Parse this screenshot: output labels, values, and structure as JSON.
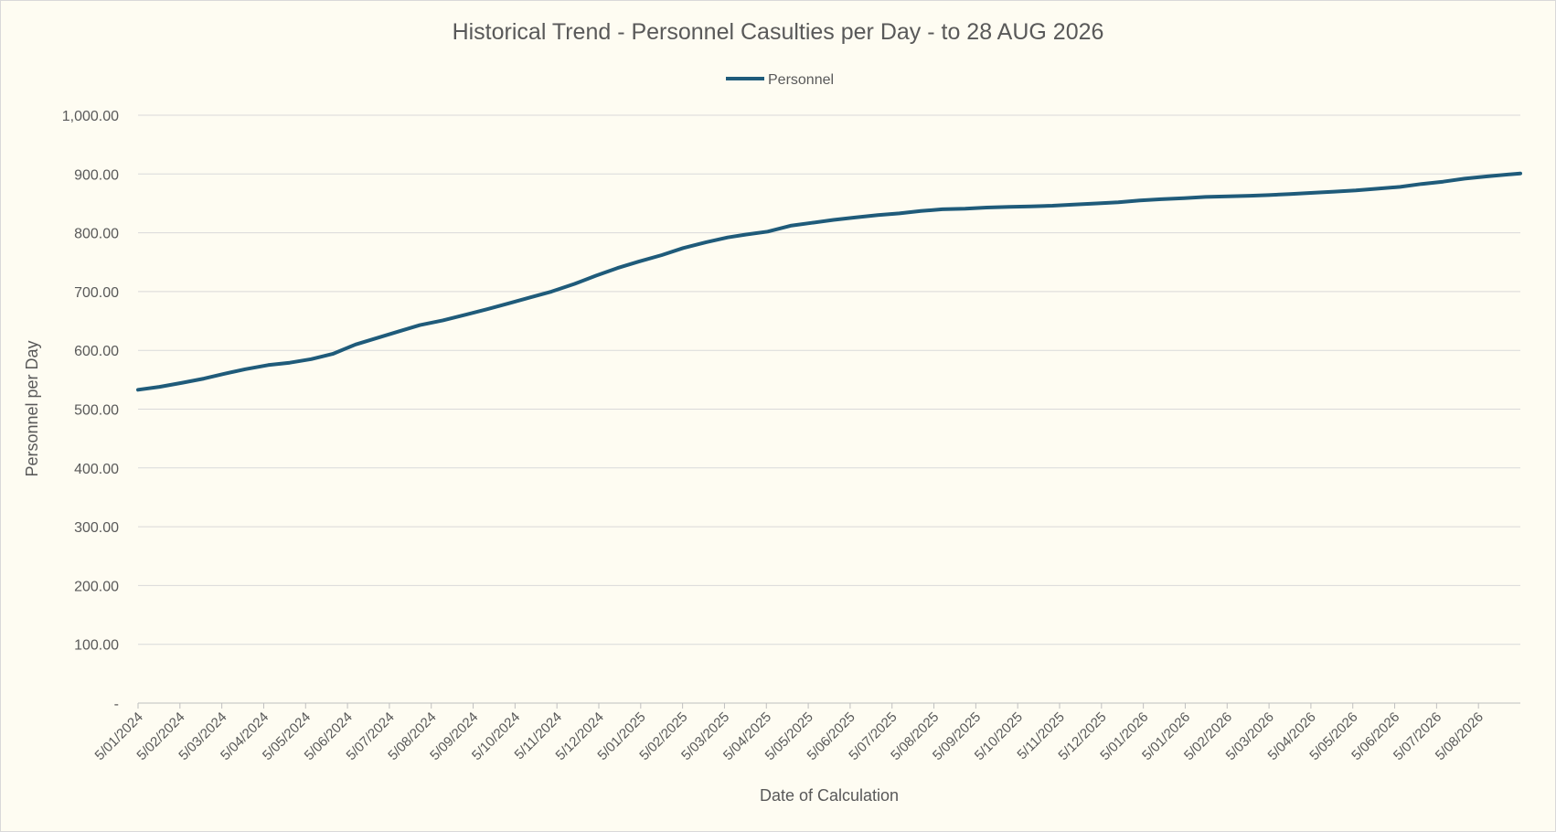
{
  "chart_data": {
    "type": "line",
    "title": "Historical Trend - Personnel Casulties per Day - to 28 AUG 2026",
    "xlabel": "Date of Calculation",
    "ylabel": "Personnel per Day",
    "legend": "top",
    "grid": true,
    "ylim": [
      0,
      1000
    ],
    "y_ticks": [
      0,
      100,
      200,
      300,
      400,
      500,
      600,
      700,
      800,
      900,
      1000
    ],
    "y_tick_labels": [
      "-",
      "100.00",
      "200.00",
      "300.00",
      "400.00",
      "500.00",
      "600.00",
      "700.00",
      "800.00",
      "900.00",
      "1,000.00"
    ],
    "x_tick_labels": [
      "5/01/2024",
      "5/02/2024",
      "5/03/2024",
      "5/04/2024",
      "5/05/2024",
      "5/06/2024",
      "5/07/2024",
      "5/08/2024",
      "5/09/2024",
      "5/10/2024",
      "5/11/2024",
      "5/12/2024",
      "5/01/2025",
      "5/02/2025",
      "5/03/2025",
      "5/04/2025",
      "5/05/2025",
      "5/06/2025",
      "5/07/2025",
      "5/08/2025",
      "5/09/2025",
      "5/10/2025",
      "5/11/2025",
      "5/12/2025",
      "5/01/2026",
      "5/01/2026",
      "5/02/2026",
      "5/03/2026",
      "5/04/2026",
      "5/05/2026",
      "5/06/2026",
      "5/07/2026",
      "5/08/2026"
    ],
    "x_range": [
      "2024-01-05",
      "2026-08-28"
    ],
    "series": [
      {
        "name": "Personnel",
        "color": "#1f5b7a",
        "points": [
          [
            "2024-01-05",
            533
          ],
          [
            "2024-01-20",
            538
          ],
          [
            "2024-02-05",
            545
          ],
          [
            "2024-02-20",
            552
          ],
          [
            "2024-03-05",
            560
          ],
          [
            "2024-03-20",
            568
          ],
          [
            "2024-04-05",
            575
          ],
          [
            "2024-04-20",
            579
          ],
          [
            "2024-05-05",
            585
          ],
          [
            "2024-05-20",
            594
          ],
          [
            "2024-06-05",
            610
          ],
          [
            "2024-06-20",
            621
          ],
          [
            "2024-07-05",
            632
          ],
          [
            "2024-07-20",
            643
          ],
          [
            "2024-08-05",
            651
          ],
          [
            "2024-08-20",
            660
          ],
          [
            "2024-09-05",
            670
          ],
          [
            "2024-09-20",
            680
          ],
          [
            "2024-10-05",
            690
          ],
          [
            "2024-10-20",
            700
          ],
          [
            "2024-11-05",
            713
          ],
          [
            "2024-11-20",
            727
          ],
          [
            "2024-12-05",
            740
          ],
          [
            "2024-12-20",
            751
          ],
          [
            "2025-01-05",
            762
          ],
          [
            "2025-01-20",
            774
          ],
          [
            "2025-02-05",
            784
          ],
          [
            "2025-02-20",
            792
          ],
          [
            "2025-03-05",
            797
          ],
          [
            "2025-03-20",
            802
          ],
          [
            "2025-04-05",
            812
          ],
          [
            "2025-04-20",
            817
          ],
          [
            "2025-05-05",
            822
          ],
          [
            "2025-05-20",
            826
          ],
          [
            "2025-06-05",
            830
          ],
          [
            "2025-06-20",
            833
          ],
          [
            "2025-07-05",
            837
          ],
          [
            "2025-07-20",
            840
          ],
          [
            "2025-08-05",
            841
          ],
          [
            "2025-08-20",
            843
          ],
          [
            "2025-09-05",
            844
          ],
          [
            "2025-09-20",
            845
          ],
          [
            "2025-10-05",
            846
          ],
          [
            "2025-10-20",
            848
          ],
          [
            "2025-11-05",
            850
          ],
          [
            "2025-11-20",
            852
          ],
          [
            "2025-12-05",
            855
          ],
          [
            "2025-12-20",
            857
          ],
          [
            "2026-01-05",
            859
          ],
          [
            "2026-01-20",
            861
          ],
          [
            "2026-02-05",
            862
          ],
          [
            "2026-02-20",
            863
          ],
          [
            "2026-03-05",
            864
          ],
          [
            "2026-03-20",
            866
          ],
          [
            "2026-04-05",
            868
          ],
          [
            "2026-04-20",
            870
          ],
          [
            "2026-05-05",
            872
          ],
          [
            "2026-05-20",
            875
          ],
          [
            "2026-06-05",
            878
          ],
          [
            "2026-06-20",
            883
          ],
          [
            "2026-07-05",
            887
          ],
          [
            "2026-07-20",
            892
          ],
          [
            "2026-08-05",
            896
          ],
          [
            "2026-08-28",
            901
          ]
        ]
      }
    ]
  }
}
